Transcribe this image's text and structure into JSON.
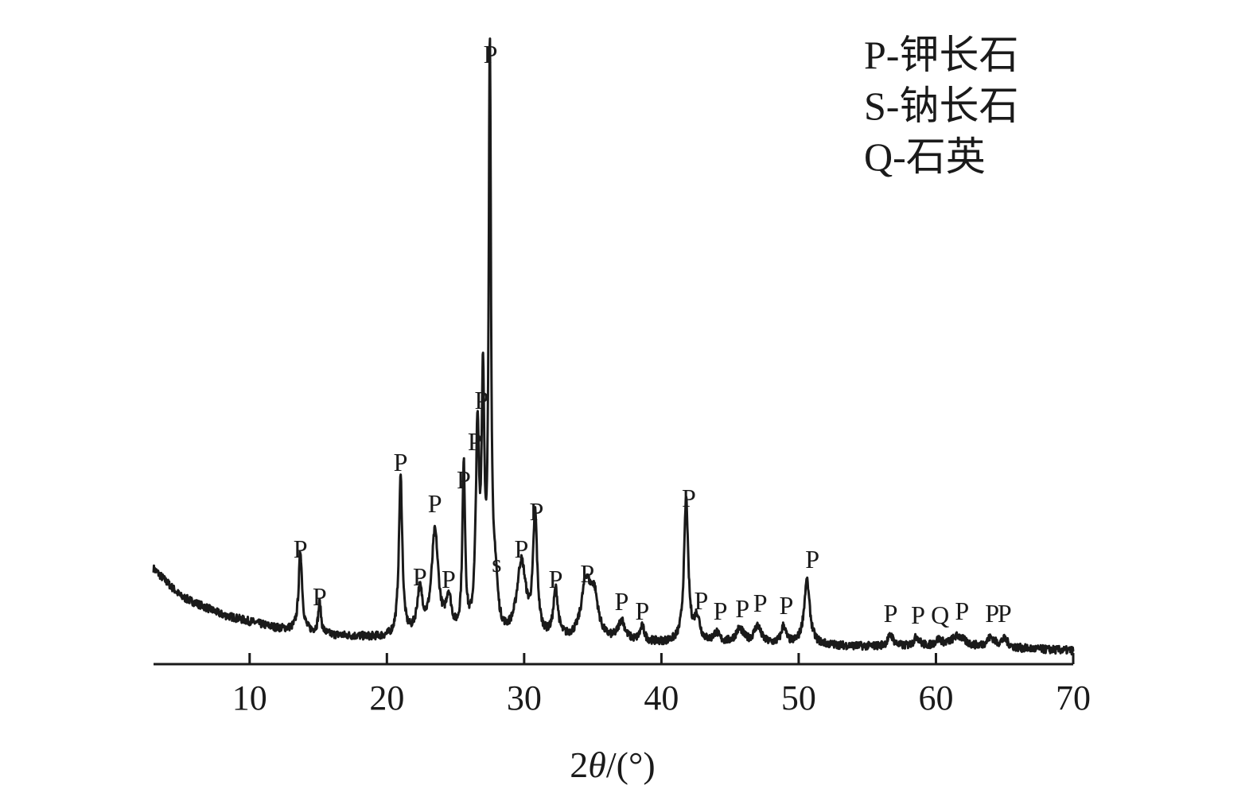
{
  "chart_data": {
    "type": "line",
    "title": "",
    "xlabel_parts": [
      "2",
      "θ",
      "/(°)"
    ],
    "ylabel": "",
    "xlim": [
      3,
      70
    ],
    "xticks": [
      10,
      20,
      30,
      40,
      50,
      60,
      70
    ],
    "grid": false,
    "legend_position": "top-right",
    "legend": [
      "P-钾长石",
      "S-钠长石",
      "Q-石英"
    ],
    "series": [
      {
        "color": "#1a1a1a",
        "background": [
          [
            3,
            120
          ],
          [
            5,
            85
          ],
          [
            8,
            62
          ],
          [
            12,
            45
          ],
          [
            16,
            36
          ],
          [
            20,
            32
          ],
          [
            25,
            30
          ],
          [
            30,
            28
          ],
          [
            35,
            27
          ],
          [
            40,
            26
          ],
          [
            45,
            25
          ],
          [
            50,
            24
          ],
          [
            55,
            22
          ],
          [
            60,
            21
          ],
          [
            65,
            20
          ],
          [
            70,
            17
          ]
        ],
        "peaks": [
          {
            "x": 13.7,
            "height": 100,
            "width": 0.15
          },
          {
            "x": 15.1,
            "height": 38,
            "width": 0.12
          },
          {
            "x": 21.0,
            "height": 200,
            "width": 0.15
          },
          {
            "x": 22.4,
            "height": 55,
            "width": 0.25
          },
          {
            "x": 23.5,
            "height": 130,
            "width": 0.3
          },
          {
            "x": 24.5,
            "height": 45,
            "width": 0.25
          },
          {
            "x": 25.6,
            "height": 210,
            "width": 0.12
          },
          {
            "x": 26.6,
            "height": 245,
            "width": 0.15
          },
          {
            "x": 27.0,
            "height": 300,
            "width": 0.12
          },
          {
            "x": 27.5,
            "height": 730,
            "width": 0.1
          },
          {
            "x": 27.9,
            "height": 60,
            "width": 0.2
          },
          {
            "x": 29.8,
            "height": 95,
            "width": 0.4
          },
          {
            "x": 30.8,
            "height": 150,
            "width": 0.18
          },
          {
            "x": 32.3,
            "height": 60,
            "width": 0.2
          },
          {
            "x": 34.5,
            "height": 70,
            "width": 0.4
          },
          {
            "x": 35.1,
            "height": 50,
            "width": 0.35
          },
          {
            "x": 37.1,
            "height": 25,
            "width": 0.3
          },
          {
            "x": 38.6,
            "height": 18,
            "width": 0.2
          },
          {
            "x": 41.8,
            "height": 180,
            "width": 0.18
          },
          {
            "x": 42.6,
            "height": 30,
            "width": 0.25
          },
          {
            "x": 44.0,
            "height": 12,
            "width": 0.25
          },
          {
            "x": 45.7,
            "height": 18,
            "width": 0.35
          },
          {
            "x": 47.0,
            "height": 22,
            "width": 0.3
          },
          {
            "x": 48.9,
            "height": 22,
            "width": 0.2
          },
          {
            "x": 50.6,
            "height": 80,
            "width": 0.25
          },
          {
            "x": 56.7,
            "height": 14,
            "width": 0.25
          },
          {
            "x": 58.6,
            "height": 12,
            "width": 0.25
          },
          {
            "x": 60.2,
            "height": 8,
            "width": 0.3
          },
          {
            "x": 61.6,
            "height": 14,
            "width": 0.6
          },
          {
            "x": 64.0,
            "height": 12,
            "width": 0.35
          },
          {
            "x": 65.0,
            "height": 10,
            "width": 0.3
          }
        ]
      }
    ],
    "annotations": [
      {
        "text": "P",
        "x": 13.7,
        "y": 128
      },
      {
        "text": "P",
        "x": 15.1,
        "y": 68
      },
      {
        "text": "P",
        "x": 21.0,
        "y": 237
      },
      {
        "text": "P",
        "x": 22.4,
        "y": 93
      },
      {
        "text": "P",
        "x": 23.5,
        "y": 185
      },
      {
        "text": "P",
        "x": 24.5,
        "y": 90
      },
      {
        "text": "P",
        "x": 25.6,
        "y": 215
      },
      {
        "text": "P",
        "x": 26.4,
        "y": 263
      },
      {
        "text": "P",
        "x": 26.9,
        "y": 315
      },
      {
        "text": "P",
        "x": 27.55,
        "y": 750
      },
      {
        "text": "s",
        "x": 28.0,
        "y": 110
      },
      {
        "text": "P",
        "x": 29.8,
        "y": 128
      },
      {
        "text": "P",
        "x": 30.9,
        "y": 175
      },
      {
        "text": "P",
        "x": 32.3,
        "y": 90
      },
      {
        "text": "P",
        "x": 34.6,
        "y": 97
      },
      {
        "text": "P",
        "x": 37.1,
        "y": 62
      },
      {
        "text": "P",
        "x": 38.6,
        "y": 50
      },
      {
        "text": "P",
        "x": 42.0,
        "y": 192
      },
      {
        "text": "P",
        "x": 42.9,
        "y": 63
      },
      {
        "text": "P",
        "x": 44.3,
        "y": 50
      },
      {
        "text": "P",
        "x": 45.9,
        "y": 53
      },
      {
        "text": "P",
        "x": 47.2,
        "y": 60
      },
      {
        "text": "P",
        "x": 49.1,
        "y": 57
      },
      {
        "text": "P",
        "x": 51.0,
        "y": 115
      },
      {
        "text": "P",
        "x": 56.7,
        "y": 47
      },
      {
        "text": "P",
        "x": 58.7,
        "y": 45
      },
      {
        "text": "Q",
        "x": 60.3,
        "y": 45
      },
      {
        "text": "P",
        "x": 61.9,
        "y": 50
      },
      {
        "text": "P",
        "x": 64.1,
        "y": 47
      },
      {
        "text": "P",
        "x": 65.0,
        "y": 47
      }
    ],
    "legend_color_note": "black"
  }
}
